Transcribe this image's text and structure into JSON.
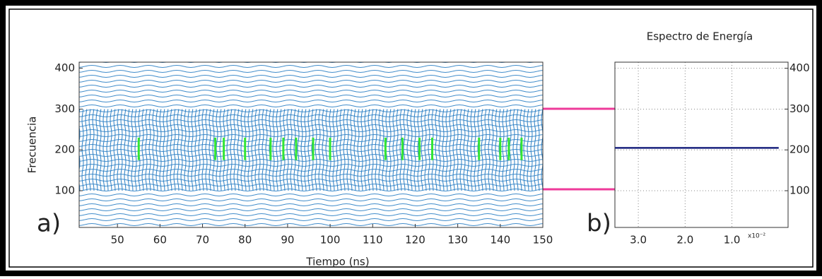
{
  "chart_data": [
    {
      "type": "contour",
      "label": "a)",
      "xlabel": "Tiempo (ns)",
      "ylabel": "Frecuencia",
      "xlim": [
        41,
        150
      ],
      "ylim": [
        10,
        415
      ],
      "xticks": [
        50,
        60,
        70,
        80,
        90,
        100,
        110,
        120,
        130,
        140,
        150
      ],
      "yticks": [
        100,
        200,
        300,
        400
      ],
      "color": "#2b7fc4",
      "highlight_color": "#33e633",
      "highlights": {
        "x": [
          55,
          73,
          75,
          80,
          86,
          89,
          92,
          96,
          100,
          113,
          117,
          121,
          124,
          135,
          140,
          142,
          145
        ],
        "ylim": [
          175,
          230
        ]
      }
    },
    {
      "type": "spectrum",
      "label": "b)",
      "title": "Espectro de Energía",
      "xlim": [
        3.5,
        -0.2
      ],
      "ylim": [
        10,
        415
      ],
      "xticks": [
        {
          "value": 3,
          "label": "3.0"
        },
        {
          "value": 2,
          "label": "2.0"
        },
        {
          "value": 1,
          "label": "1.0"
        }
      ],
      "x_multiplier": "x10⁻²",
      "yticks": [
        100,
        200,
        300,
        400
      ],
      "grid": true,
      "color": "#1a237e",
      "peak": {
        "frequency": 205,
        "energy": 3.5
      }
    }
  ]
}
